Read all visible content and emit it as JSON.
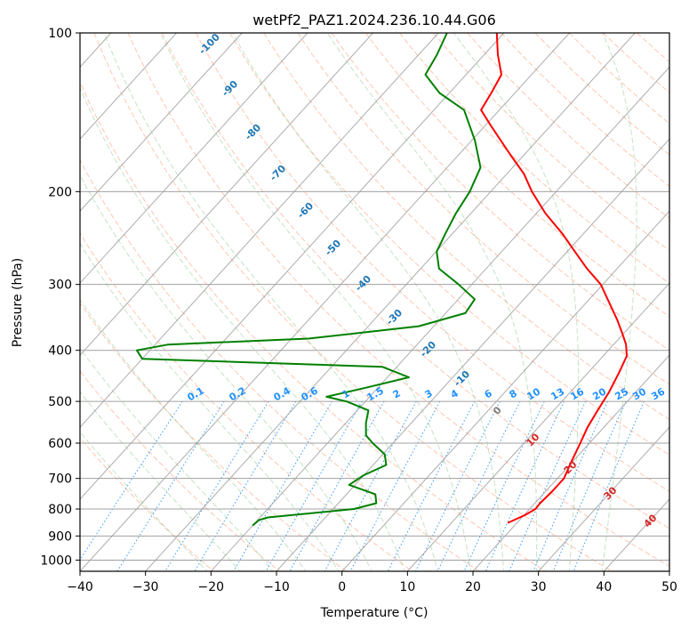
{
  "chart_data": {
    "type": "line",
    "title": "wetPf2_PAZ1.2024.236.10.44.G06",
    "xlabel": "Temperature (°C)",
    "ylabel": "Pressure (hPa)",
    "xlim": [
      -40,
      50
    ],
    "ylim": [
      1050,
      100
    ],
    "y_scale": "log",
    "grid": true,
    "x_ticks": [
      "−40",
      "−30",
      "−20",
      "−10",
      "0",
      "10",
      "20",
      "30",
      "40",
      "50"
    ],
    "y_ticks": [
      "100",
      "200",
      "300",
      "400",
      "500",
      "600",
      "700",
      "800",
      "900",
      "1000"
    ],
    "skewed_isotherm_labels": [
      "-100",
      "-90",
      "-80",
      "-70",
      "-60",
      "-50",
      "-40",
      "-30",
      "-20",
      "-10",
      "0",
      "10",
      "20",
      "30",
      "40"
    ],
    "mixing_ratio_labels": [
      "0.1",
      "0.2",
      "0.4",
      "0.6",
      "1",
      "1.5",
      "2",
      "3",
      "4",
      "6",
      "8",
      "10",
      "13",
      "16",
      "20",
      "25",
      "30",
      "36"
    ],
    "series": [
      {
        "color": "#ff0000",
        "points": [
          {
            "p": 850,
            "t": 18.6
          },
          {
            "p": 820,
            "t": 20.2
          },
          {
            "p": 800,
            "t": 20.9
          },
          {
            "p": 780,
            "t": 20.8
          },
          {
            "p": 740,
            "t": 21.0
          },
          {
            "p": 700,
            "t": 21.0
          },
          {
            "p": 650,
            "t": 19.8
          },
          {
            "p": 600,
            "t": 18.6
          },
          {
            "p": 560,
            "t": 17.5
          },
          {
            "p": 520,
            "t": 16.7
          },
          {
            "p": 480,
            "t": 15.9
          },
          {
            "p": 440,
            "t": 14.7
          },
          {
            "p": 410,
            "t": 13.6
          },
          {
            "p": 390,
            "t": 11.9
          },
          {
            "p": 370,
            "t": 9.6
          },
          {
            "p": 350,
            "t": 7.1
          },
          {
            "p": 320,
            "t": 2.8
          },
          {
            "p": 300,
            "t": -0.3
          },
          {
            "p": 280,
            "t": -4.6
          },
          {
            "p": 260,
            "t": -8.8
          },
          {
            "p": 240,
            "t": -13.3
          },
          {
            "p": 220,
            "t": -18.6
          },
          {
            "p": 200,
            "t": -23.7
          },
          {
            "p": 185,
            "t": -27.4
          },
          {
            "p": 170,
            "t": -32.2
          },
          {
            "p": 150,
            "t": -39.1
          },
          {
            "p": 140,
            "t": -42.8
          },
          {
            "p": 130,
            "t": -43.6
          },
          {
            "p": 120,
            "t": -44.6
          },
          {
            "p": 110,
            "t": -47.9
          },
          {
            "p": 100,
            "t": -51.1
          }
        ]
      },
      {
        "color": "#008000",
        "points": [
          {
            "p": 860,
            "t": -20.0
          },
          {
            "p": 840,
            "t": -19.8
          },
          {
            "p": 830,
            "t": -18.8
          },
          {
            "p": 800,
            "t": -6.8
          },
          {
            "p": 780,
            "t": -4.2
          },
          {
            "p": 750,
            "t": -5.6
          },
          {
            "p": 720,
            "t": -10.9
          },
          {
            "p": 690,
            "t": -10.0
          },
          {
            "p": 660,
            "t": -8.0
          },
          {
            "p": 630,
            "t": -9.7
          },
          {
            "p": 600,
            "t": -13.1
          },
          {
            "p": 580,
            "t": -15.2
          },
          {
            "p": 550,
            "t": -16.9
          },
          {
            "p": 520,
            "t": -18.3
          },
          {
            "p": 500,
            "t": -22.9
          },
          {
            "p": 490,
            "t": -26.6
          },
          {
            "p": 470,
            "t": -21.6
          },
          {
            "p": 450,
            "t": -16.7
          },
          {
            "p": 430,
            "t": -22.2
          },
          {
            "p": 415,
            "t": -60.0
          },
          {
            "p": 400,
            "t": -62.0
          },
          {
            "p": 390,
            "t": -58.0
          },
          {
            "p": 380,
            "t": -37.4
          },
          {
            "p": 360,
            "t": -22.3
          },
          {
            "p": 340,
            "t": -17.0
          },
          {
            "p": 320,
            "t": -17.5
          },
          {
            "p": 300,
            "t": -22.0
          },
          {
            "p": 280,
            "t": -27.2
          },
          {
            "p": 260,
            "t": -29.9
          },
          {
            "p": 240,
            "t": -31.1
          },
          {
            "p": 220,
            "t": -32.3
          },
          {
            "p": 200,
            "t": -33.2
          },
          {
            "p": 180,
            "t": -34.9
          },
          {
            "p": 160,
            "t": -39.5
          },
          {
            "p": 140,
            "t": -45.4
          },
          {
            "p": 130,
            "t": -51.5
          },
          {
            "p": 120,
            "t": -56.2
          },
          {
            "p": 110,
            "t": -57.2
          },
          {
            "p": 100,
            "t": -58.7
          }
        ]
      }
    ]
  }
}
